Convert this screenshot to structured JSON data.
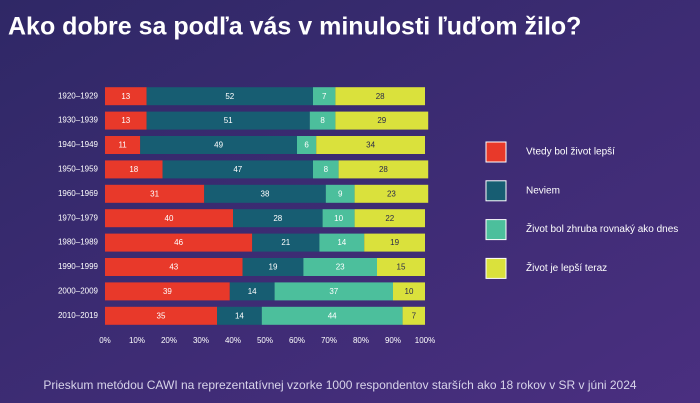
{
  "chart_data": {
    "type": "stacked-bar-horizontal",
    "title": "Ako dobre sa podľa vás v minulosti ľuďom žilo?",
    "footnote": "Prieskum metódou CAWI na reprezentatívnej vzorke 1000 respondentov starších ako 18 rokov v SR v júni 2024",
    "categories": [
      "1920–1929",
      "1930–1939",
      "1940–1949",
      "1950–1959",
      "1960–1969",
      "1970–1979",
      "1980–1989",
      "1990–1999",
      "2000–2009",
      "2010–2019"
    ],
    "series": [
      {
        "name": "Vtedy bol život lepší",
        "color": "#e8392a",
        "values": [
          13,
          13,
          11,
          18,
          31,
          40,
          46,
          43,
          39,
          35
        ]
      },
      {
        "name": "Neviem",
        "color": "#175d72",
        "values": [
          52,
          51,
          49,
          47,
          38,
          28,
          21,
          19,
          14,
          14
        ]
      },
      {
        "name": "Život bol zhruba rovnaký ako dnes",
        "color": "#4cbf9c",
        "values": [
          7,
          8,
          6,
          8,
          9,
          10,
          14,
          23,
          37,
          44
        ]
      },
      {
        "name": "Život je lepší teraz",
        "color": "#dae13c",
        "values": [
          28,
          29,
          34,
          28,
          23,
          22,
          19,
          15,
          10,
          7
        ]
      }
    ],
    "xlim": [
      0,
      100
    ],
    "xticks": [
      {
        "value": 0,
        "label": "0%"
      },
      {
        "value": 10,
        "label": "10%"
      },
      {
        "value": 20,
        "label": "20%"
      },
      {
        "value": 30,
        "label": "30%"
      },
      {
        "value": 40,
        "label": "40%"
      },
      {
        "value": 50,
        "label": "50%"
      },
      {
        "value": 60,
        "label": "60%"
      },
      {
        "value": 70,
        "label": "70%"
      },
      {
        "value": 80,
        "label": "80%"
      },
      {
        "value": 90,
        "label": "90%"
      },
      {
        "value": 100,
        "label": "100%"
      }
    ],
    "legend": "right",
    "grid": false
  }
}
